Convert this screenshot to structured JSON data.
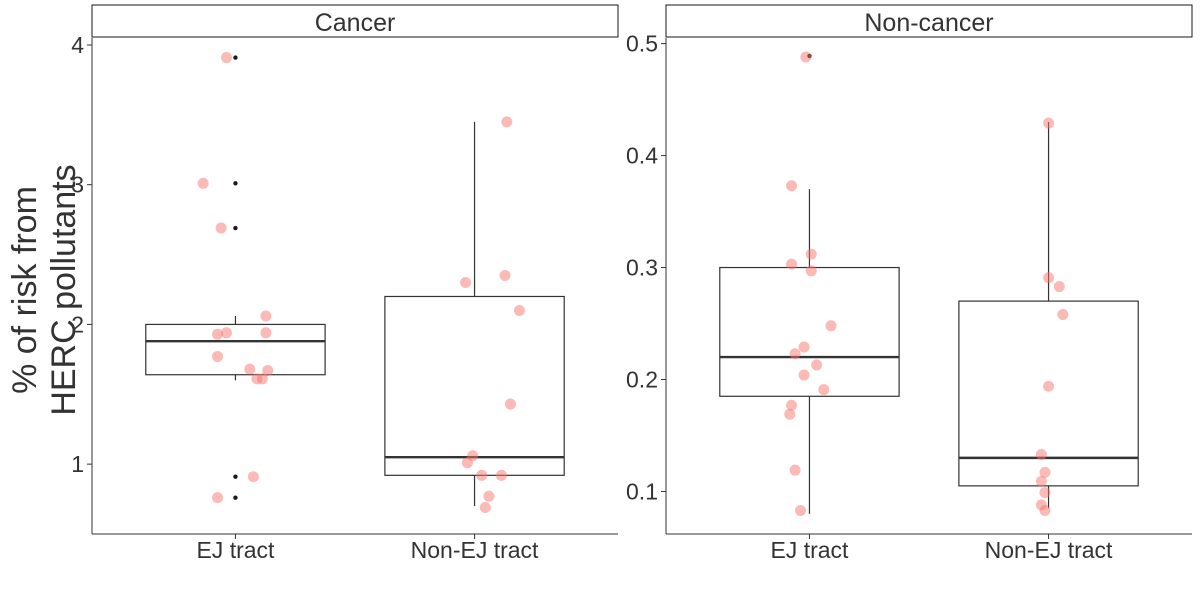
{
  "figure": {
    "ylabel_lines": [
      "% of risk from",
      "HERC pollutants"
    ]
  },
  "chart_data": [
    {
      "type": "boxplot",
      "title": "Cancer",
      "categories": [
        "EJ tract",
        "Non-EJ tract"
      ],
      "ylim": [
        0.5,
        4.05
      ],
      "yticks": [
        1,
        2,
        3,
        4
      ],
      "ytick_labels": [
        "1",
        "2",
        "3",
        "4"
      ],
      "grid": false,
      "boxes": [
        {
          "category": "EJ tract",
          "q1": 1.64,
          "median": 1.88,
          "q3": 2.0,
          "whisker_low": 1.6,
          "whisker_high": 2.06,
          "outliers": [
            3.91,
            3.01,
            2.69,
            0.91,
            0.76
          ]
        },
        {
          "category": "Non-EJ tract",
          "q1": 0.92,
          "median": 1.05,
          "q3": 2.2,
          "whisker_low": 0.7,
          "whisker_high": 3.45,
          "outliers": []
        }
      ],
      "points": [
        {
          "category": "EJ tract",
          "jitter": -0.05,
          "y": 3.91
        },
        {
          "category": "EJ tract",
          "jitter": -0.18,
          "y": 3.01
        },
        {
          "category": "EJ tract",
          "jitter": -0.08,
          "y": 2.69
        },
        {
          "category": "EJ tract",
          "jitter": 0.17,
          "y": 2.06
        },
        {
          "category": "EJ tract",
          "jitter": 0.17,
          "y": 1.94
        },
        {
          "category": "EJ tract",
          "jitter": -0.1,
          "y": 1.93
        },
        {
          "category": "EJ tract",
          "jitter": -0.05,
          "y": 1.94
        },
        {
          "category": "EJ tract",
          "jitter": -0.1,
          "y": 1.77
        },
        {
          "category": "EJ tract",
          "jitter": 0.08,
          "y": 1.68
        },
        {
          "category": "EJ tract",
          "jitter": 0.18,
          "y": 1.67
        },
        {
          "category": "EJ tract",
          "jitter": 0.12,
          "y": 1.61
        },
        {
          "category": "EJ tract",
          "jitter": 0.15,
          "y": 1.61
        },
        {
          "category": "EJ tract",
          "jitter": 0.1,
          "y": 0.91
        },
        {
          "category": "EJ tract",
          "jitter": -0.1,
          "y": 0.76
        },
        {
          "category": "Non-EJ tract",
          "jitter": 0.18,
          "y": 3.45
        },
        {
          "category": "Non-EJ tract",
          "jitter": 0.17,
          "y": 2.35
        },
        {
          "category": "Non-EJ tract",
          "jitter": -0.05,
          "y": 2.3
        },
        {
          "category": "Non-EJ tract",
          "jitter": 0.25,
          "y": 2.1
        },
        {
          "category": "Non-EJ tract",
          "jitter": 0.2,
          "y": 1.43
        },
        {
          "category": "Non-EJ tract",
          "jitter": -0.01,
          "y": 1.06
        },
        {
          "category": "Non-EJ tract",
          "jitter": -0.04,
          "y": 1.01
        },
        {
          "category": "Non-EJ tract",
          "jitter": 0.04,
          "y": 0.92
        },
        {
          "category": "Non-EJ tract",
          "jitter": 0.15,
          "y": 0.92
        },
        {
          "category": "Non-EJ tract",
          "jitter": 0.08,
          "y": 0.77
        },
        {
          "category": "Non-EJ tract",
          "jitter": 0.06,
          "y": 0.69
        }
      ]
    },
    {
      "type": "boxplot",
      "title": "Non-cancer",
      "categories": [
        "EJ tract",
        "Non-EJ tract"
      ],
      "ylim": [
        0.062,
        0.505
      ],
      "yticks": [
        0.1,
        0.2,
        0.3,
        0.4,
        0.5
      ],
      "ytick_labels": [
        "0.1",
        "0.2",
        "0.3",
        "0.4",
        "0.5"
      ],
      "grid": false,
      "boxes": [
        {
          "category": "EJ tract",
          "q1": 0.185,
          "median": 0.22,
          "q3": 0.3,
          "whisker_low": 0.08,
          "whisker_high": 0.37,
          "outliers": [
            0.489
          ]
        },
        {
          "category": "Non-EJ tract",
          "q1": 0.105,
          "median": 0.13,
          "q3": 0.27,
          "whisker_low": 0.085,
          "whisker_high": 0.43,
          "outliers": []
        }
      ],
      "points": [
        {
          "category": "EJ tract",
          "jitter": -0.02,
          "y": 0.488
        },
        {
          "category": "EJ tract",
          "jitter": -0.1,
          "y": 0.373
        },
        {
          "category": "EJ tract",
          "jitter": 0.01,
          "y": 0.312
        },
        {
          "category": "EJ tract",
          "jitter": -0.1,
          "y": 0.303
        },
        {
          "category": "EJ tract",
          "jitter": 0.01,
          "y": 0.297
        },
        {
          "category": "EJ tract",
          "jitter": 0.12,
          "y": 0.248
        },
        {
          "category": "EJ tract",
          "jitter": -0.03,
          "y": 0.229
        },
        {
          "category": "EJ tract",
          "jitter": -0.08,
          "y": 0.223
        },
        {
          "category": "EJ tract",
          "jitter": 0.04,
          "y": 0.213
        },
        {
          "category": "EJ tract",
          "jitter": -0.03,
          "y": 0.204
        },
        {
          "category": "EJ tract",
          "jitter": 0.08,
          "y": 0.191
        },
        {
          "category": "EJ tract",
          "jitter": -0.1,
          "y": 0.177
        },
        {
          "category": "EJ tract",
          "jitter": -0.11,
          "y": 0.169
        },
        {
          "category": "EJ tract",
          "jitter": -0.08,
          "y": 0.119
        },
        {
          "category": "EJ tract",
          "jitter": -0.05,
          "y": 0.083
        },
        {
          "category": "Non-EJ tract",
          "jitter": 0.0,
          "y": 0.429
        },
        {
          "category": "Non-EJ tract",
          "jitter": 0.0,
          "y": 0.291
        },
        {
          "category": "Non-EJ tract",
          "jitter": 0.06,
          "y": 0.283
        },
        {
          "category": "Non-EJ tract",
          "jitter": 0.08,
          "y": 0.258
        },
        {
          "category": "Non-EJ tract",
          "jitter": 0.0,
          "y": 0.194
        },
        {
          "category": "Non-EJ tract",
          "jitter": -0.04,
          "y": 0.133
        },
        {
          "category": "Non-EJ tract",
          "jitter": -0.02,
          "y": 0.117
        },
        {
          "category": "Non-EJ tract",
          "jitter": -0.04,
          "y": 0.109
        },
        {
          "category": "Non-EJ tract",
          "jitter": -0.02,
          "y": 0.099
        },
        {
          "category": "Non-EJ tract",
          "jitter": -0.04,
          "y": 0.088
        },
        {
          "category": "Non-EJ tract",
          "jitter": -0.02,
          "y": 0.083
        }
      ]
    }
  ],
  "colors": {
    "points": "#f8766d",
    "box_stroke": "#333333",
    "outlier": "#1a1a1a",
    "strip_fill": "#ffffff",
    "strip_stroke": "#1a1a1a",
    "axis": "#333333",
    "text": "#333333"
  }
}
